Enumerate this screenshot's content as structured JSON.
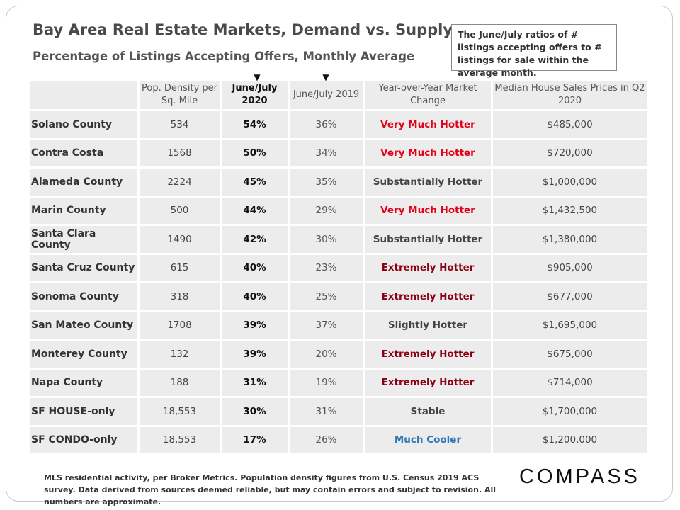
{
  "title": "Bay Area Real Estate Markets, Demand vs. Supply",
  "subtitle": "Percentage of Listings Accepting Offers, Monthly Average",
  "note": "The June/July ratios of # listings accepting offers to # listings for sale within the average month.",
  "arrow_glyph": "▼",
  "headers": {
    "name": "",
    "density": "Pop. Density per Sq. Mile",
    "jj2020": "June/July 2020",
    "jj2019": "June/July 2019",
    "change": "Year-over-Year Market Change",
    "price": "Median House Sales Prices in Q2 2020"
  },
  "rows": [
    {
      "name": "Solano County",
      "density": "534",
      "jj2020": "54%",
      "jj2019": "36%",
      "change": "Very Much Hotter",
      "price": "$485,000"
    },
    {
      "name": "Contra Costa",
      "density": "1568",
      "jj2020": "50%",
      "jj2019": "34%",
      "change": "Very Much Hotter",
      "price": "$720,000"
    },
    {
      "name": "Alameda County",
      "density": "2224",
      "jj2020": "45%",
      "jj2019": "35%",
      "change": "Substantially Hotter",
      "price": "$1,000,000"
    },
    {
      "name": "Marin County",
      "density": "500",
      "jj2020": "44%",
      "jj2019": "29%",
      "change": "Very Much Hotter",
      "price": "$1,432,500"
    },
    {
      "name": "Santa Clara County",
      "density": "1490",
      "jj2020": "42%",
      "jj2019": "30%",
      "change": "Substantially Hotter",
      "price": "$1,380,000"
    },
    {
      "name": "Santa Cruz County",
      "density": "615",
      "jj2020": "40%",
      "jj2019": "23%",
      "change": "Extremely Hotter",
      "price": "$905,000"
    },
    {
      "name": "Sonoma County",
      "density": "318",
      "jj2020": "40%",
      "jj2019": "25%",
      "change": "Extremely Hotter",
      "price": "$677,000"
    },
    {
      "name": "San Mateo County",
      "density": "1708",
      "jj2020": "39%",
      "jj2019": "37%",
      "change": "Slightly Hotter",
      "price": "$1,695,000"
    },
    {
      "name": "Monterey County",
      "density": "132",
      "jj2020": "39%",
      "jj2019": "20%",
      "change": "Extremely Hotter",
      "price": "$675,000"
    },
    {
      "name": "Napa County",
      "density": "188",
      "jj2020": "31%",
      "jj2019": "19%",
      "change": "Extremely Hotter",
      "price": "$714,000"
    },
    {
      "name": "SF HOUSE-only",
      "density": "18,553",
      "jj2020": "30%",
      "jj2019": "31%",
      "change": "Stable",
      "price": "$1,700,000"
    },
    {
      "name": "SF CONDO-only",
      "density": "18,553",
      "jj2020": "17%",
      "jj2019": "26%",
      "change": "Much Cooler",
      "price": "$1,200,000"
    }
  ],
  "change_colors": {
    "Very Much Hotter": "#e3001b",
    "Substantially Hotter": "#444444",
    "Extremely Hotter": "#8b0012",
    "Slightly Hotter": "#444444",
    "Stable": "#444444",
    "Much Cooler": "#2e77b8"
  },
  "footer": "MLS residential activity, per Broker Metrics. Population density figures from U.S. Census 2019 ACS survey. Data derived from sources deemed reliable, but may contain errors and subject to revision.  All numbers are approximate.",
  "logo": "COMPASS"
}
